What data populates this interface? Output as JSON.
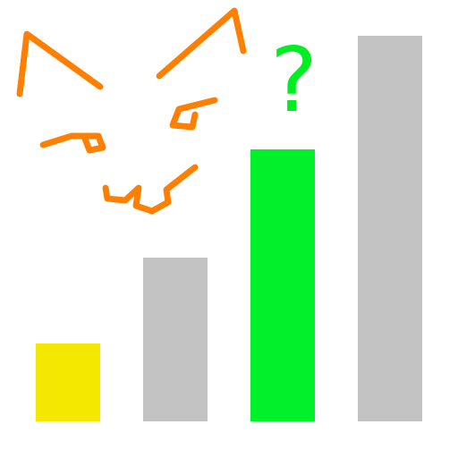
{
  "chart_data": {
    "type": "bar",
    "categories": [
      null,
      null,
      null,
      null
    ],
    "values": [
      87,
      183,
      304,
      431
    ],
    "colors": [
      "#f5e800",
      "#c3c3c3",
      "#00f029",
      "#c3c3c3"
    ],
    "ylim": [
      0,
      471
    ],
    "tick_labels": false,
    "annotations": [
      "?"
    ]
  }
}
